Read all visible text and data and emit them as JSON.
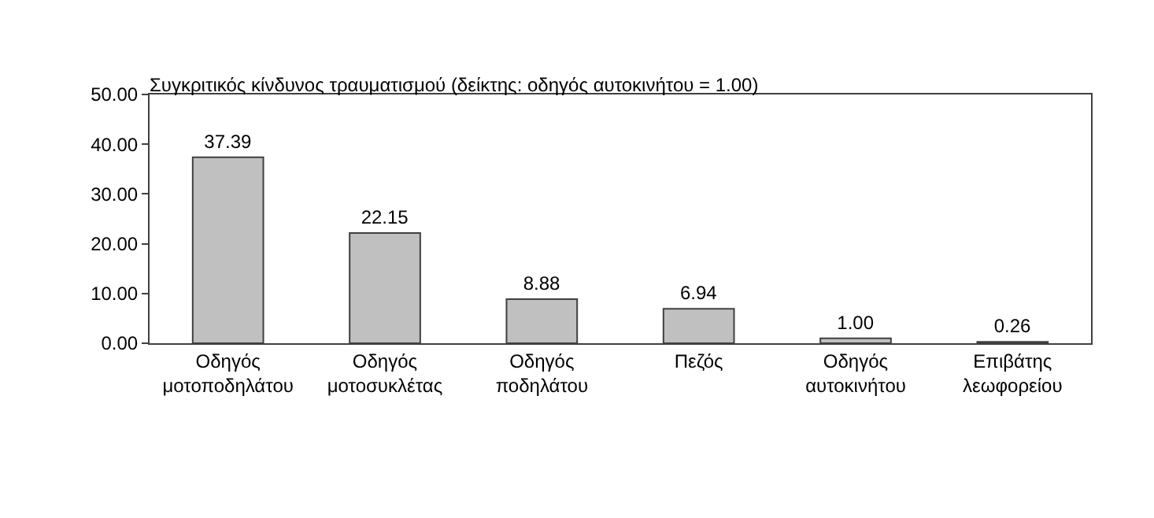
{
  "chart_data": {
    "type": "bar",
    "title": "Συγκριτικός κίνδυνος τραυματισμού (δείκτης: οδηγός αυτοκινήτου = 1.00)",
    "categories": [
      "Οδηγός\nμοτοποδηλάτου",
      "Οδηγός\nμοτοσυκλέτας",
      "Οδηγός\nποδηλάτου",
      "Πεζός",
      "Οδηγός\nαυτοκινήτου",
      "Επιβάτης\nλεωφορείου"
    ],
    "values": [
      37.39,
      22.15,
      8.88,
      6.94,
      1.0,
      0.26
    ],
    "value_labels": [
      "37.39",
      "22.15",
      "8.88",
      "6.94",
      "1.00",
      "0.26"
    ],
    "color": "#c0c0c0",
    "ylim": [
      0,
      50
    ],
    "yticks": [
      {
        "value": 0,
        "label": "0.00"
      },
      {
        "value": 10,
        "label": "10.00"
      },
      {
        "value": 20,
        "label": "20.00"
      },
      {
        "value": 30,
        "label": "30.00"
      },
      {
        "value": 40,
        "label": "40.00"
      },
      {
        "value": 50,
        "label": "50.00"
      }
    ],
    "grid": false
  }
}
